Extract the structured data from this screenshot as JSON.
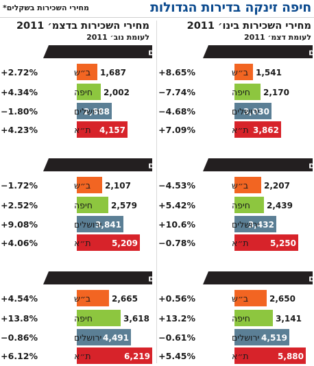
{
  "header": {
    "title": "חיפה זינקה בדירות הגדולות",
    "subtitle": "מחירי השכירות בשקלים*"
  },
  "colors": {
    "title": "#0b4a8e",
    "group_bar": "#231f20",
    "bar_beersheva": "#f26522",
    "bar_haifa": "#8dc63f",
    "bar_jerusalem": "#5b7f95",
    "bar_telaviv": "#d7232a"
  },
  "chart_data": [
    {
      "type": "bar",
      "title": "מחירי השכירות בינו׳ 2011",
      "subtitle": "לעומת דצמ׳ 2011",
      "categories": [
        "ב״ש",
        "חיפה",
        "ירושלים",
        "ת״א"
      ],
      "groups": [
        {
          "label": "2 חדרים",
          "values": [
            1541,
            2170,
            3030,
            3862
          ],
          "changes": [
            "+8.65%",
            "−7.74%",
            "−4.68%",
            "+7.09%"
          ],
          "value_labels": [
            "1,541",
            "2,170",
            "3,030",
            "3,862"
          ]
        },
        {
          "label": "3 חדרים",
          "values": [
            2207,
            2439,
            3432,
            5250
          ],
          "changes": [
            "−4.53%",
            "+5.42%",
            "+10.6%",
            "−0.78%"
          ],
          "value_labels": [
            "2,207",
            "2,439",
            "3,432",
            "5,250"
          ]
        },
        {
          "label": "4 חדרים",
          "values": [
            2650,
            3141,
            4519,
            5880
          ],
          "changes": [
            "+0.56%",
            "+13.2%",
            "−0.61%",
            "+5.45%"
          ],
          "value_labels": [
            "2,650",
            "3,141",
            "4,519",
            "5,880"
          ]
        }
      ]
    },
    {
      "type": "bar",
      "title": "מחירי השכירות בדצמ׳ 2011",
      "subtitle": "לעומת נוב׳ 2011",
      "categories": [
        "ב״ש",
        "חיפה",
        "ירושלים",
        "ת״א"
      ],
      "groups": [
        {
          "label": "2 חדרים",
          "values": [
            1687,
            2002,
            2888,
            4157
          ],
          "changes": [
            "+2.72%",
            "+4.34%",
            "−1.80%",
            "+4.23%"
          ],
          "value_labels": [
            "1,687",
            "2,002",
            "2,888",
            "4,157"
          ]
        },
        {
          "label": "3 חדרים",
          "values": [
            2107,
            2579,
            3841,
            5209
          ],
          "changes": [
            "−1.72%",
            "+2.52%",
            "+9.08%",
            "+4.06%"
          ],
          "value_labels": [
            "2,107",
            "2,579",
            "3,841",
            "5,209"
          ]
        },
        {
          "label": "4 חדרים",
          "values": [
            2665,
            3618,
            4491,
            6219
          ],
          "changes": [
            "+4.54%",
            "+13.8%",
            "−0.86%",
            "+6.12%"
          ],
          "value_labels": [
            "2,665",
            "3,618",
            "4,491",
            "6,219"
          ]
        }
      ]
    }
  ]
}
